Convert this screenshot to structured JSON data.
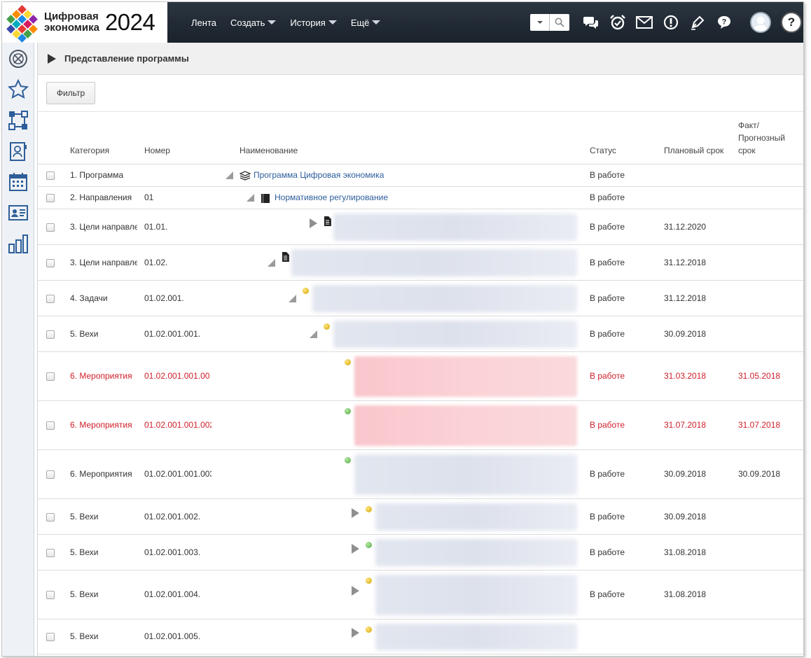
{
  "app": {
    "logo_line1": "Цифровая",
    "logo_line2": "экономика",
    "logo_year": "2024"
  },
  "nav": [
    {
      "label": "Лента",
      "dropdown": false
    },
    {
      "label": "Создать",
      "dropdown": true
    },
    {
      "label": "История",
      "dropdown": true
    },
    {
      "label": "Ещё",
      "dropdown": true
    }
  ],
  "header_icons": [
    "chat-icon",
    "alarm-clock-icon",
    "mail-icon",
    "alert-icon",
    "pen-icon",
    "question-bubble-icon"
  ],
  "help_label": "?",
  "sidebar": [
    "dashboard-icon",
    "star-icon",
    "hierarchy-icon",
    "contact-card-icon",
    "calendar-icon",
    "id-card-icon",
    "bar-chart-icon"
  ],
  "page": {
    "title": "Представление программы",
    "filter_label": "Фильтр"
  },
  "table": {
    "headers": {
      "category": "Категория",
      "number": "Номер",
      "name": "Наименование",
      "status": "Статус",
      "plan": "Плановый срок",
      "fact_l1": "Факт/",
      "fact_l2": "Прогнозный",
      "fact_l3": "срок"
    },
    "rows": [
      {
        "category": "1. Программа",
        "number": "",
        "name": "Программа Цифровая экономика",
        "status": "В работе",
        "plan": "",
        "fact": "",
        "indent": 0,
        "toggle": "expanded",
        "icon": "stack-icon",
        "red": false,
        "blur": null
      },
      {
        "category": "2. Направления",
        "number": "01",
        "name": "Нормативное регулирование",
        "status": "В работе",
        "plan": "",
        "fact": "",
        "indent": 1,
        "toggle": "expanded",
        "icon": "book-icon",
        "red": false,
        "blur": null
      },
      {
        "category": "3. Цели направле",
        "number": "01.01.",
        "name": "",
        "status": "В работе",
        "plan": "31.12.2020",
        "fact": "",
        "indent": 2,
        "toggle": "collapsed",
        "icon": "document-icon",
        "red": false,
        "blur": "gray"
      },
      {
        "category": "3. Цели направле",
        "number": "01.02.",
        "name": "",
        "status": "В работе",
        "plan": "31.12.2018",
        "fact": "",
        "indent": 2,
        "toggle": "expanded",
        "icon": "document-icon",
        "red": false,
        "blur": "gray"
      },
      {
        "category": "4. Задачи",
        "number": "01.02.001.",
        "name": "",
        "status": "В работе",
        "plan": "31.12.2018",
        "fact": "",
        "indent": 3,
        "toggle": "expanded",
        "icon": "yellow-dot-icon",
        "red": false,
        "blur": "gray"
      },
      {
        "category": "5. Вехи",
        "number": "01.02.001.001.",
        "name": "",
        "status": "В работе",
        "plan": "30.09.2018",
        "fact": "",
        "indent": 4,
        "toggle": "expanded",
        "icon": "yellow-dot-icon",
        "red": false,
        "blur": "gray"
      },
      {
        "category": "6. Мероприятия",
        "number": "01.02.001.001.00",
        "name": "",
        "status": "В работе",
        "plan": "31.03.2018",
        "fact": "31.05.2018",
        "indent": 5,
        "toggle": "none",
        "icon": "yellow-dot-icon",
        "red": true,
        "blur": "pink"
      },
      {
        "category": "6. Мероприятия",
        "number": "01.02.001.001.002",
        "name": "",
        "status": "В работе",
        "plan": "31.07.2018",
        "fact": "31.07.2018",
        "indent": 5,
        "toggle": "none",
        "icon": "green-dot-icon",
        "red": true,
        "blur": "pink"
      },
      {
        "category": "6. Мероприятия",
        "number": "01.02.001.001.003",
        "name": "",
        "status": "В работе",
        "plan": "30.09.2018",
        "fact": "30.09.2018",
        "indent": 5,
        "toggle": "none",
        "icon": "green-dot-icon",
        "red": false,
        "blur": "gray"
      },
      {
        "category": "5. Вехи",
        "number": "01.02.001.002.",
        "name": "",
        "status": "В работе",
        "plan": "30.09.2018",
        "fact": "",
        "indent": 4,
        "toggle": "collapsed",
        "icon": "yellow-dot-icon",
        "red": false,
        "blur": "gray"
      },
      {
        "category": "5. Вехи",
        "number": "01.02.001.003.",
        "name": "",
        "status": "В работе",
        "plan": "31.08.2018",
        "fact": "",
        "indent": 4,
        "toggle": "collapsed",
        "icon": "green-dot-icon",
        "red": false,
        "blur": "gray"
      },
      {
        "category": "5. Вехи",
        "number": "01.02.001.004.",
        "name": "",
        "status": "В работе",
        "plan": "31.08.2018",
        "fact": "",
        "indent": 4,
        "toggle": "collapsed",
        "icon": "yellow-dot-icon",
        "red": false,
        "blur": "gray"
      },
      {
        "category": "5. Вехи",
        "number": "01.02.001.005.",
        "name": "",
        "status": "",
        "plan": "",
        "fact": "",
        "indent": 4,
        "toggle": "collapsed",
        "icon": "yellow-dot-icon",
        "red": false,
        "blur": "gray"
      }
    ]
  },
  "colors": {
    "header_bg": "#1f2831",
    "link": "#2c5d9b",
    "overdue": "#d0202a"
  }
}
